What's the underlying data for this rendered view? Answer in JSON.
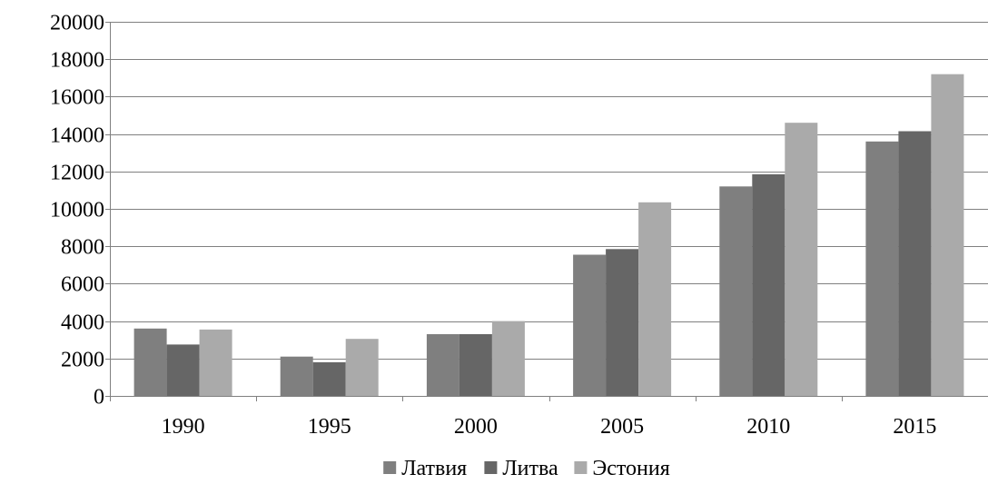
{
  "chart_data": {
    "type": "bar",
    "categories": [
      "1990",
      "1995",
      "2000",
      "2005",
      "2010",
      "2015"
    ],
    "series": [
      {
        "name": "Латвия",
        "color": "#7f7f7f",
        "values": [
          3600,
          2100,
          3300,
          7550,
          11200,
          13600
        ]
      },
      {
        "name": "Литва",
        "color": "#666666",
        "values": [
          2750,
          1800,
          3300,
          7850,
          11850,
          14150
        ]
      },
      {
        "name": "Эстония",
        "color": "#aaaaaa",
        "values": [
          3550,
          3050,
          4000,
          10350,
          14600,
          17200
        ]
      }
    ],
    "y_ticks": [
      "0",
      "2000",
      "4000",
      "6000",
      "8000",
      "10000",
      "12000",
      "14000",
      "16000",
      "18000",
      "20000"
    ],
    "ylim": [
      0,
      20000
    ],
    "grid": true,
    "legend_position": "bottom"
  }
}
